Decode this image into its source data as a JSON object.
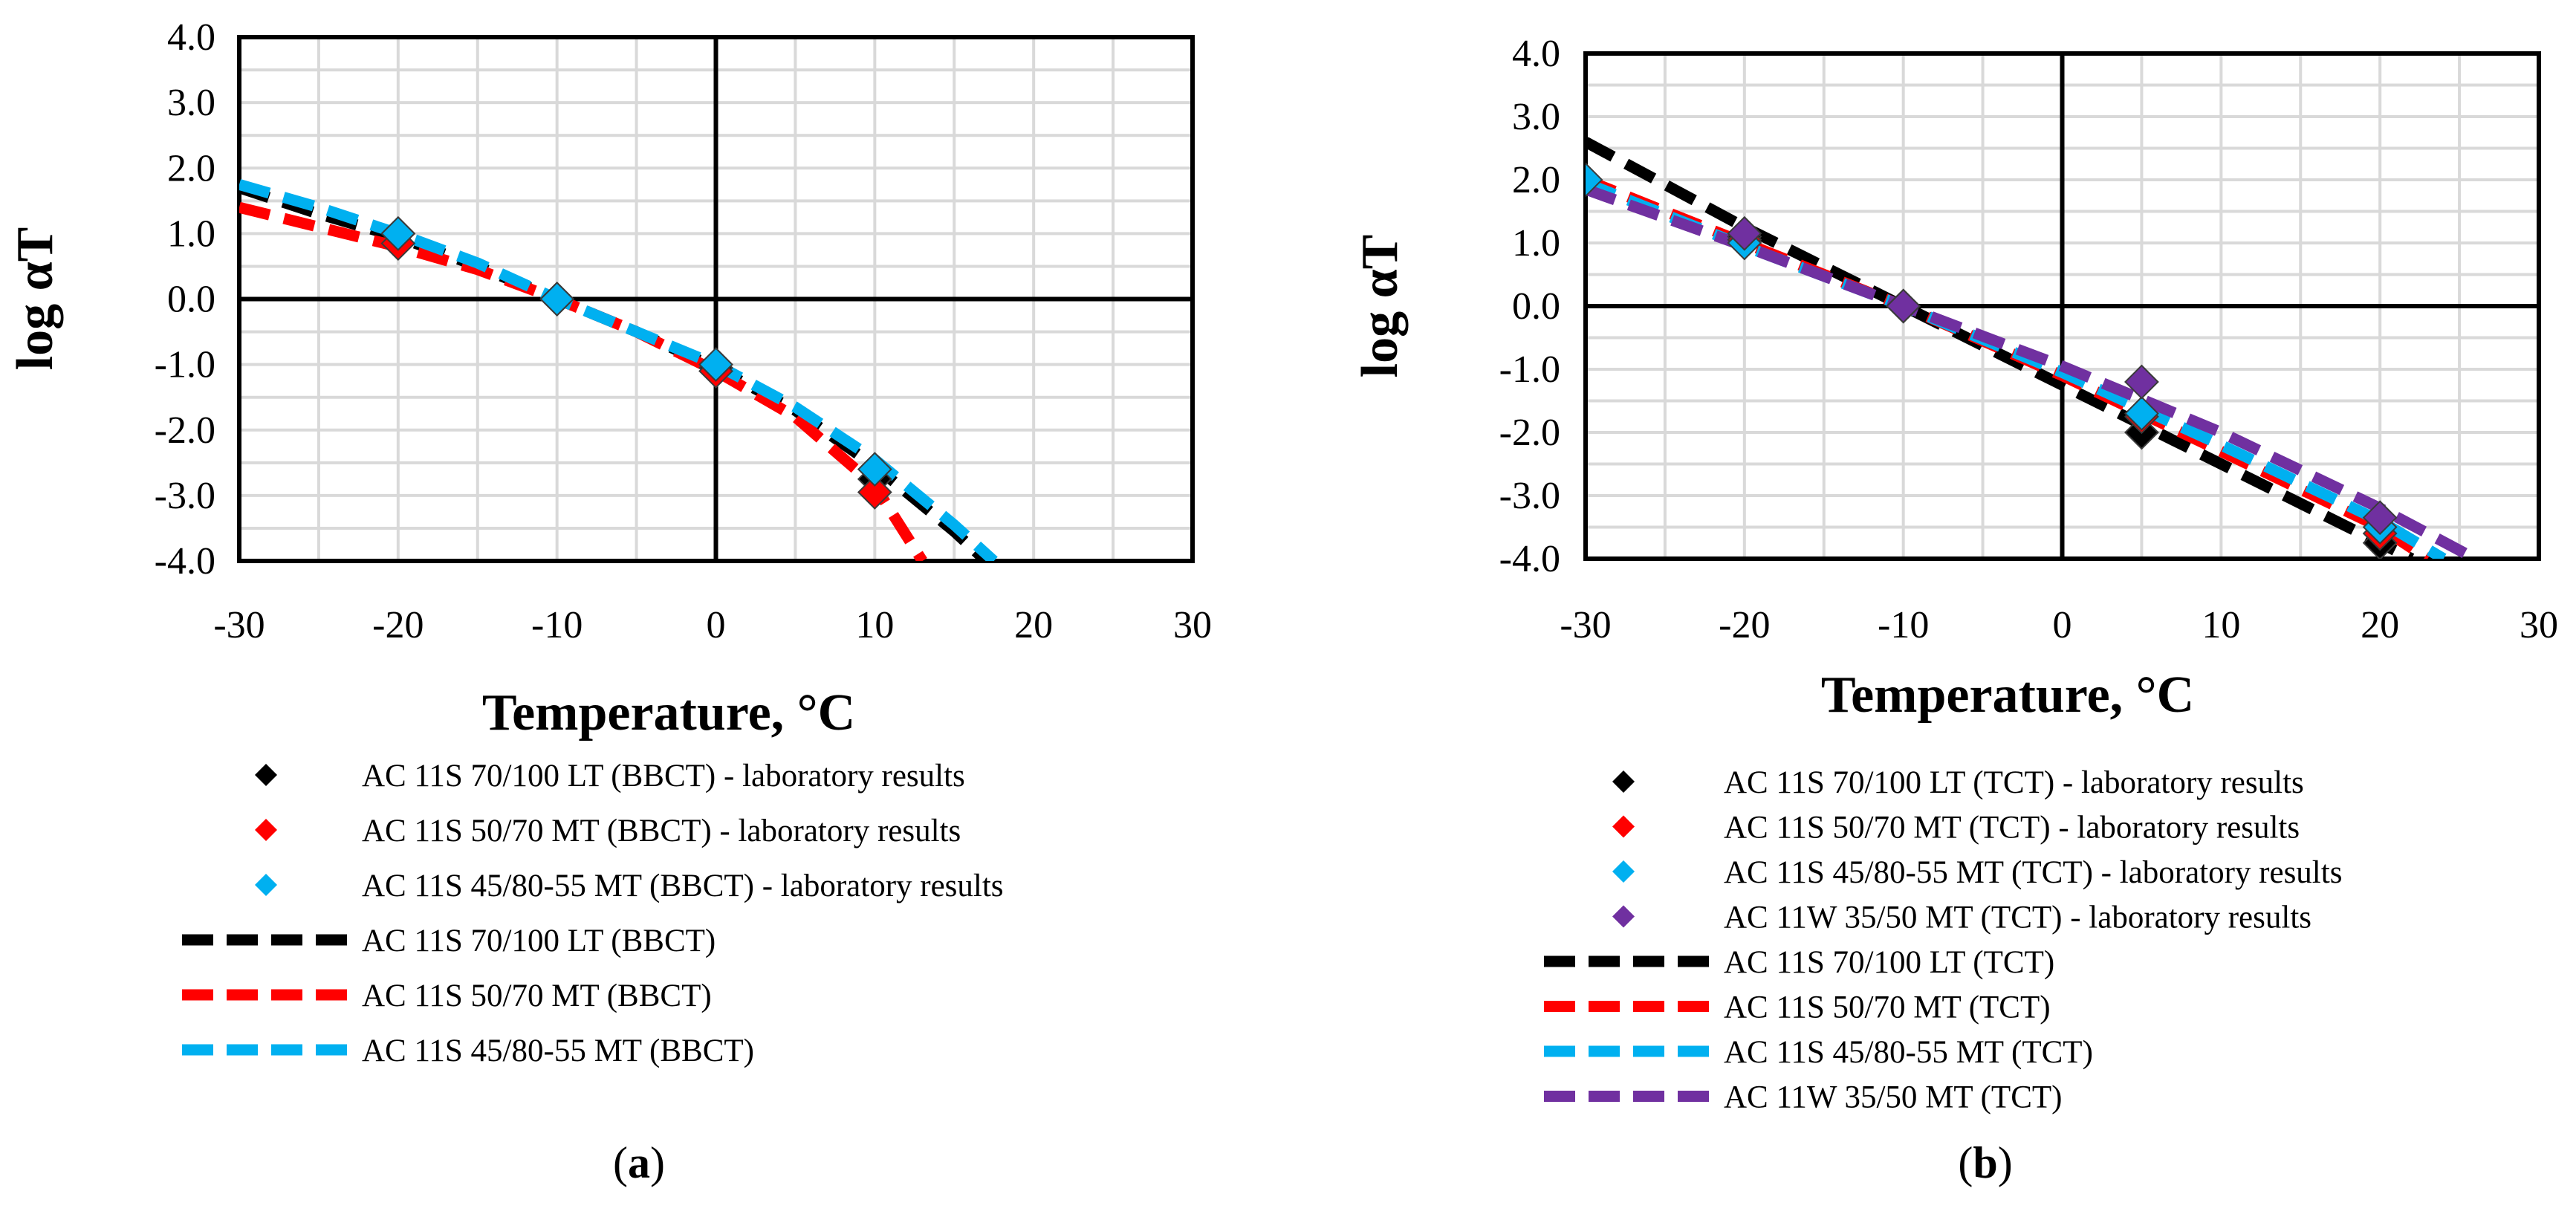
{
  "chart_data": [
    {
      "id": "a",
      "type": "line",
      "caption_letter": "a",
      "xlabel": "Temperature, °C",
      "ylabel": "log αT",
      "xlim": [
        -30,
        30
      ],
      "ylim": [
        -4,
        4
      ],
      "xticks": [
        -30,
        -20,
        -10,
        0,
        10,
        20,
        30
      ],
      "yticks": [
        4,
        3,
        2,
        1,
        0,
        -1,
        -2,
        -3,
        -4
      ],
      "ytick_labels": [
        "4.0",
        "3.0",
        "2.0",
        "1.0",
        "0.0",
        "-1.0",
        "-2.0",
        "-3.0",
        "-4.0"
      ],
      "grid": true,
      "points": [
        {
          "name": "AC 11S 70/100 LT (BBCT) - laboratory results",
          "color": "#000000",
          "data": [
            [
              -20,
              1.0
            ],
            [
              -10,
              0.0
            ],
            [
              0,
              -1.05
            ],
            [
              10,
              -2.75
            ]
          ]
        },
        {
          "name": "AC 11S 50/70 MT (BBCT) - laboratory results",
          "color": "#ff0000",
          "data": [
            [
              -20,
              0.85
            ],
            [
              -10,
              0.0
            ],
            [
              0,
              -1.1
            ],
            [
              10,
              -2.95
            ]
          ]
        },
        {
          "name": "AC 11S 45/80-55 MT (BBCT) - laboratory results",
          "color": "#00b0f0",
          "data": [
            [
              -20,
              1.0
            ],
            [
              -10,
              0.0
            ],
            [
              0,
              -1.0
            ],
            [
              10,
              -2.6
            ]
          ]
        }
      ],
      "series": [
        {
          "name": "AC 11S 70/100 LT (BBCT)",
          "color": "#000000",
          "x": [
            -30,
            -25,
            -20,
            -15,
            -10,
            -5,
            0,
            5,
            10,
            15,
            17
          ],
          "y": [
            1.7,
            1.3,
            0.95,
            0.5,
            0.0,
            -0.5,
            -1.05,
            -1.7,
            -2.55,
            -3.55,
            -4.0
          ]
        },
        {
          "name": "AC 11S 50/70 MT (BBCT)",
          "color": "#ff0000",
          "x": [
            -30,
            -25,
            -20,
            -15,
            -10,
            -5,
            0,
            5,
            10,
            13
          ],
          "y": [
            1.4,
            1.1,
            0.8,
            0.45,
            0.0,
            -0.5,
            -1.1,
            -1.8,
            -2.85,
            -4.0
          ]
        },
        {
          "name": "AC 11S 45/80-55 MT (BBCT)",
          "color": "#00b0f0",
          "x": [
            -30,
            -25,
            -20,
            -15,
            -10,
            -5,
            0,
            5,
            10,
            15,
            17.5
          ],
          "y": [
            1.75,
            1.4,
            1.0,
            0.55,
            0.0,
            -0.5,
            -1.0,
            -1.65,
            -2.45,
            -3.45,
            -4.0
          ]
        }
      ]
    },
    {
      "id": "b",
      "type": "line",
      "caption_letter": "b",
      "xlabel": "Temperature, °C",
      "ylabel": "log αT",
      "xlim": [
        -30,
        30
      ],
      "ylim": [
        -4,
        4
      ],
      "xticks": [
        -30,
        -20,
        -10,
        0,
        10,
        20,
        30
      ],
      "yticks": [
        4,
        3,
        2,
        1,
        0,
        -1,
        -2,
        -3,
        -4
      ],
      "ytick_labels": [
        "4.0",
        "3.0",
        "2.0",
        "1.0",
        "0.0",
        "-1.0",
        "-2.0",
        "-3.0",
        "-4.0"
      ],
      "grid": true,
      "points": [
        {
          "name": "AC 11S 70/100 LT (TCT) - laboratory results",
          "color": "#000000",
          "data": [
            [
              -20,
              1.1
            ],
            [
              -10,
              0.0
            ],
            [
              5,
              -2.0
            ],
            [
              20,
              -3.75
            ]
          ]
        },
        {
          "name": "AC 11S 50/70 MT (TCT) - laboratory results",
          "color": "#ff0000",
          "data": [
            [
              -20,
              1.05
            ],
            [
              -10,
              0.0
            ],
            [
              5,
              -1.75
            ],
            [
              20,
              -3.6
            ]
          ]
        },
        {
          "name": "AC 11S 45/80-55 MT (TCT) - laboratory results",
          "color": "#00b0f0",
          "data": [
            [
              -30,
              2.0
            ],
            [
              -20,
              1.0
            ],
            [
              -10,
              0.0
            ],
            [
              5,
              -1.7
            ],
            [
              20,
              -3.5
            ]
          ]
        },
        {
          "name": "AC 11W 35/50 MT (TCT) - laboratory results",
          "color": "#7030a0",
          "data": [
            [
              -20,
              1.15
            ],
            [
              -10,
              0.0
            ],
            [
              5,
              -1.2
            ],
            [
              20,
              -3.35
            ]
          ]
        }
      ],
      "series": [
        {
          "name": "AC 11S 70/100 LT (TCT)",
          "color": "#000000",
          "x": [
            -30,
            -20,
            -10,
            0,
            10,
            20,
            22
          ],
          "y": [
            2.6,
            1.25,
            0.0,
            -1.25,
            -2.5,
            -3.75,
            -4.0
          ]
        },
        {
          "name": "AC 11S 50/70 MT (TCT)",
          "color": "#ff0000",
          "x": [
            -30,
            -20,
            -10,
            0,
            10,
            20,
            23
          ],
          "y": [
            2.0,
            1.0,
            0.0,
            -1.1,
            -2.3,
            -3.5,
            -4.0
          ]
        },
        {
          "name": "AC 11S 45/80-55 MT (TCT)",
          "color": "#00b0f0",
          "x": [
            -30,
            -20,
            -10,
            0,
            10,
            20,
            24
          ],
          "y": [
            1.95,
            0.95,
            0.0,
            -1.05,
            -2.2,
            -3.4,
            -4.0
          ]
        },
        {
          "name": "AC 11W 35/50 MT (TCT)",
          "color": "#7030a0",
          "x": [
            -30,
            -20,
            -10,
            0,
            10,
            20,
            26
          ],
          "y": [
            1.85,
            0.95,
            0.0,
            -0.95,
            -2.0,
            -3.2,
            -4.0
          ]
        }
      ]
    }
  ]
}
